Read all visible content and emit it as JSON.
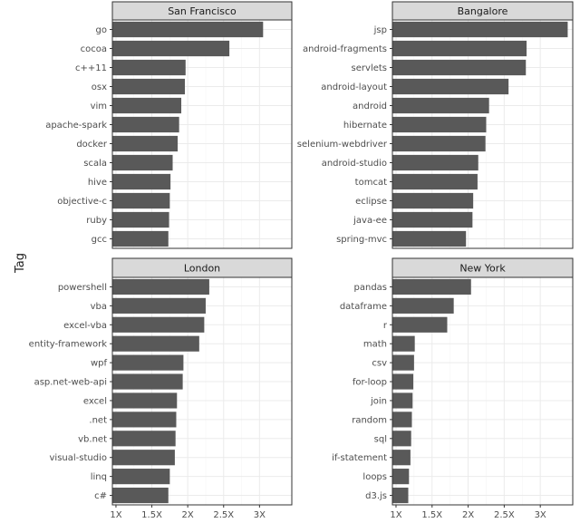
{
  "chart_data": {
    "type": "bar",
    "orientation": "horizontal",
    "ylabel": "Tag",
    "xlabel": "",
    "xlim": [
      0.95,
      3.45
    ],
    "x_ticks": [
      1,
      1.5,
      2,
      2.5,
      3
    ],
    "x_tick_labels": [
      "1X",
      "1.5X",
      "2X",
      "2.5X",
      "3X"
    ],
    "facets": [
      {
        "title": "San Francisco",
        "categories": [
          "go",
          "cocoa",
          "c++11",
          "osx",
          "vim",
          "apache-spark",
          "docker",
          "scala",
          "hive",
          "objective-c",
          "ruby",
          "gcc"
        ],
        "values": [
          3.05,
          2.58,
          1.97,
          1.96,
          1.91,
          1.88,
          1.86,
          1.79,
          1.76,
          1.75,
          1.74,
          1.73
        ]
      },
      {
        "title": "Bangalore",
        "categories": [
          "jsp",
          "android-fragments",
          "servlets",
          "android-layout",
          "android",
          "hibernate",
          "selenium-webdriver",
          "android-studio",
          "tomcat",
          "eclipse",
          "java-ee",
          "spring-mvc"
        ],
        "values": [
          3.38,
          2.81,
          2.8,
          2.56,
          2.29,
          2.25,
          2.24,
          2.14,
          2.13,
          2.07,
          2.06,
          1.97
        ]
      },
      {
        "title": "London",
        "categories": [
          "powershell",
          "vba",
          "excel-vba",
          "entity-framework",
          "wpf",
          "asp.net-web-api",
          "excel",
          ".net",
          "vb.net",
          "visual-studio",
          "linq",
          "c#"
        ],
        "values": [
          2.3,
          2.25,
          2.23,
          2.16,
          1.94,
          1.93,
          1.85,
          1.84,
          1.83,
          1.82,
          1.75,
          1.73
        ]
      },
      {
        "title": "New York",
        "categories": [
          "pandas",
          "dataframe",
          "r",
          "math",
          "csv",
          "for-loop",
          "join",
          "random",
          "sql",
          "if-statement",
          "loops",
          "d3.js"
        ],
        "values": [
          2.04,
          1.8,
          1.71,
          1.26,
          1.25,
          1.24,
          1.23,
          1.22,
          1.21,
          1.2,
          1.18,
          1.17
        ]
      }
    ]
  },
  "colors": {
    "bar": "#595959",
    "strip_fill": "#d9d9d9",
    "border": "#333333",
    "grid_major": "#ebebeb",
    "grid_minor": "#f5f5f5"
  }
}
